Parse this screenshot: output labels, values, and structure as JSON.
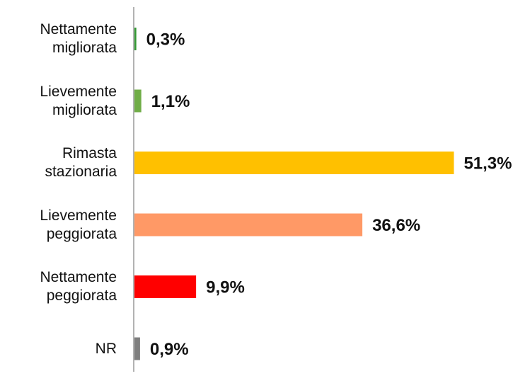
{
  "chart_data": {
    "type": "bar",
    "orientation": "horizontal",
    "categories": [
      "Nettamente\nmigliorata",
      "Lievemente\nmigliorata",
      "Rimasta\nstazionaria",
      "Lievemente\npeggiorata",
      "Nettamente\npeggiorata",
      "NR"
    ],
    "values": [
      0.3,
      1.1,
      51.3,
      36.6,
      9.9,
      0.9
    ],
    "value_labels": [
      "0,3%",
      "1,1%",
      "51,3%",
      "36,6%",
      "9,9%",
      "0,9%"
    ],
    "colors": [
      "#339933",
      "#70ad47",
      "#ffc000",
      "#ff9966",
      "#ff0000",
      "#7f7f7f"
    ]
  }
}
